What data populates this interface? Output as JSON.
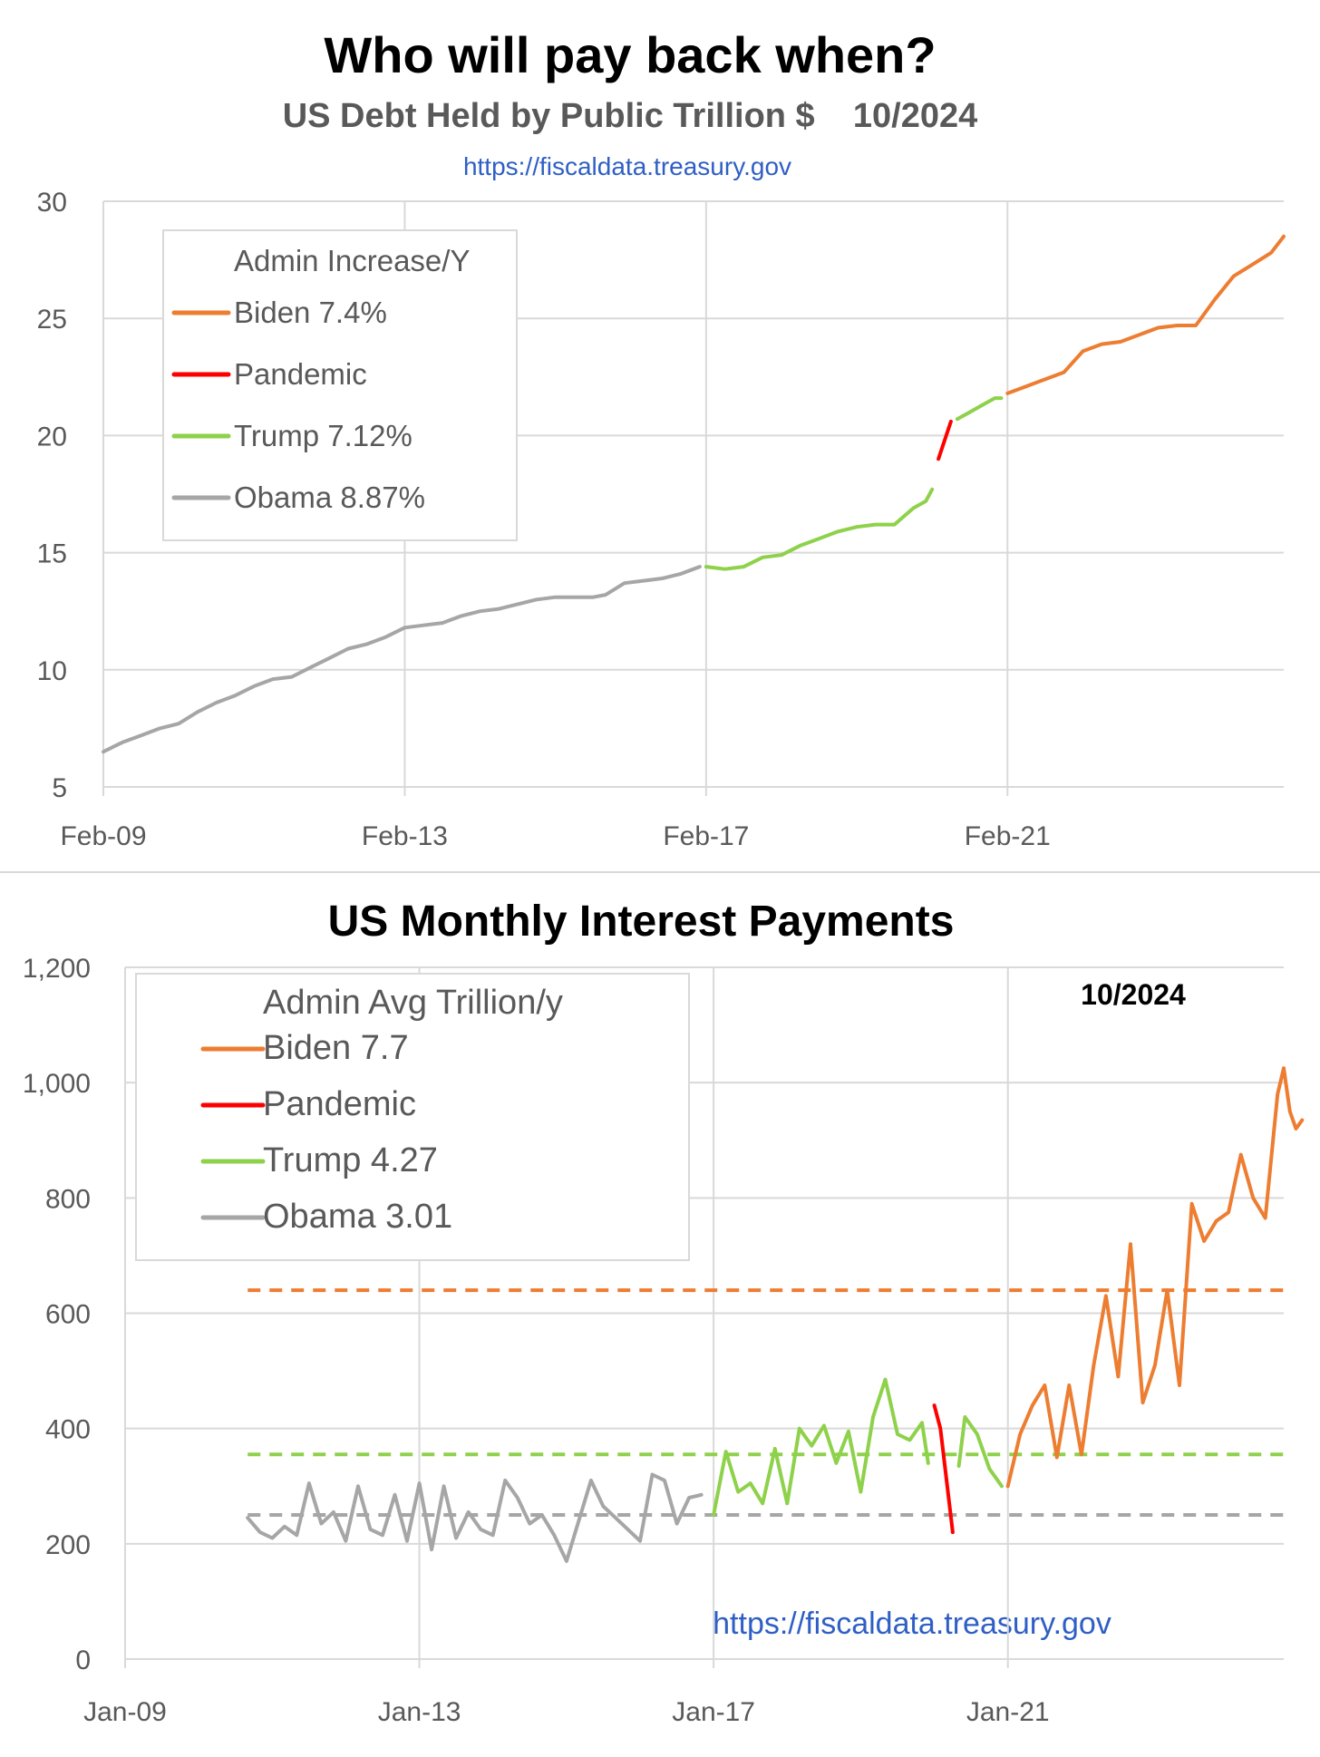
{
  "colors": {
    "biden": "#ED7D31",
    "pandemic": "#FF0000",
    "trump": "#8ED14B",
    "obama": "#A6A6A6",
    "grid": "#D9D9D9",
    "axis_text": "#595959",
    "link": "#2F5FC4",
    "title": "#000000",
    "subtitle": "#595959"
  },
  "chart_data": [
    {
      "type": "line",
      "title": "Who will pay back when?",
      "subtitle": "US Debt Held by Public Trillion $    10/2024",
      "source": "https://fiscaldata.treasury.gov",
      "xlabel": "",
      "ylabel": "",
      "x_tick_labels": [
        "Feb-09",
        "Feb-13",
        "Feb-17",
        "Feb-21"
      ],
      "x_ticks": [
        "2009-02",
        "2013-02",
        "2017-02",
        "2021-02"
      ],
      "x_range": [
        "2009-02",
        "2024-10"
      ],
      "y_tick_labels": [
        "5",
        "10",
        "15",
        "20",
        "25",
        "30"
      ],
      "y_ticks": [
        5,
        10,
        15,
        20,
        25,
        30
      ],
      "ylim": [
        5,
        30
      ],
      "grid": true,
      "legend": {
        "placement": "top-left",
        "title": "Admin Increase/Y",
        "entries": [
          {
            "label": "Biden 7.4%",
            "series": "biden"
          },
          {
            "label": "Pandemic",
            "series": "pandemic"
          },
          {
            "label": "Trump 7.12%",
            "series": "trump"
          },
          {
            "label": "Obama 8.87%",
            "series": "obama"
          }
        ]
      },
      "series": [
        {
          "name": "Obama 8.87%",
          "key": "obama",
          "x": [
            "2009-02",
            "2009-05",
            "2009-08",
            "2009-11",
            "2010-02",
            "2010-05",
            "2010-08",
            "2010-11",
            "2011-02",
            "2011-05",
            "2011-08",
            "2011-11",
            "2012-02",
            "2012-05",
            "2012-08",
            "2012-11",
            "2013-02",
            "2013-05",
            "2013-08",
            "2013-11",
            "2014-02",
            "2014-05",
            "2014-08",
            "2014-11",
            "2015-02",
            "2015-05",
            "2015-08",
            "2015-10",
            "2016-01",
            "2016-04",
            "2016-07",
            "2016-10",
            "2017-01"
          ],
          "y": [
            6.5,
            6.9,
            7.2,
            7.5,
            7.7,
            8.2,
            8.6,
            8.9,
            9.3,
            9.6,
            9.7,
            10.1,
            10.5,
            10.9,
            11.1,
            11.4,
            11.8,
            11.9,
            12.0,
            12.3,
            12.5,
            12.6,
            12.8,
            13.0,
            13.1,
            13.1,
            13.1,
            13.2,
            13.7,
            13.8,
            13.9,
            14.1,
            14.4
          ]
        },
        {
          "name": "Trump 7.12%",
          "key": "trump",
          "x": [
            "2017-02",
            "2017-05",
            "2017-08",
            "2017-11",
            "2018-02",
            "2018-05",
            "2018-08",
            "2018-11",
            "2019-02",
            "2019-05",
            "2019-08",
            "2019-11",
            "2020-01",
            "2020-02"
          ],
          "y": [
            14.4,
            14.3,
            14.4,
            14.8,
            14.9,
            15.3,
            15.6,
            15.9,
            16.1,
            16.2,
            16.2,
            16.9,
            17.2,
            17.7
          ]
        },
        {
          "name": "Pandemic",
          "key": "pandemic",
          "x": [
            "2020-03",
            "2020-05"
          ],
          "y": [
            19.0,
            20.6
          ]
        },
        {
          "name": "Trump 7.12%",
          "key": "trump",
          "x": [
            "2020-06",
            "2020-08",
            "2020-10",
            "2020-12",
            "2021-01"
          ],
          "y": [
            20.7,
            21.0,
            21.3,
            21.6,
            21.6
          ]
        },
        {
          "name": "Biden 7.4%",
          "key": "biden",
          "x": [
            "2021-02",
            "2021-05",
            "2021-08",
            "2021-11",
            "2022-02",
            "2022-05",
            "2022-08",
            "2022-11",
            "2023-02",
            "2023-05",
            "2023-08",
            "2023-11",
            "2024-02",
            "2024-05",
            "2024-08",
            "2024-10"
          ],
          "y": [
            21.8,
            22.1,
            22.4,
            22.7,
            23.6,
            23.9,
            24.0,
            24.3,
            24.6,
            24.7,
            24.7,
            25.8,
            26.8,
            27.3,
            27.8,
            28.5
          ]
        }
      ]
    },
    {
      "type": "line",
      "title": "US Monthly Interest Payments",
      "annotation": "10/2024",
      "source": "https://fiscaldata.treasury.gov",
      "xlabel": "",
      "ylabel": "",
      "x_tick_labels": [
        "Jan-09",
        "Jan-13",
        "Jan-17",
        "Jan-21"
      ],
      "x_ticks": [
        "2009-01",
        "2013-01",
        "2017-01",
        "2021-01"
      ],
      "x_range": [
        "2009-01",
        "2024-10"
      ],
      "y_tick_labels": [
        "0",
        "200",
        "400",
        "600",
        "800",
        "1,000",
        "1,200"
      ],
      "y_ticks": [
        0,
        200,
        400,
        600,
        800,
        1000,
        1200
      ],
      "ylim": [
        0,
        1200
      ],
      "grid": true,
      "legend": {
        "placement": "top-left",
        "title": "Admin Avg Trillion/y",
        "entries": [
          {
            "label": "Biden 7.7",
            "series": "biden"
          },
          {
            "label": "Pandemic",
            "series": "pandemic"
          },
          {
            "label": "Trump 4.27",
            "series": "trump"
          },
          {
            "label": "Obama 3.01",
            "series": "obama"
          }
        ]
      },
      "reference_lines": [
        {
          "key": "biden",
          "y": 640,
          "x": [
            "2010-09",
            "2024-10"
          ]
        },
        {
          "key": "trump",
          "y": 355,
          "x": [
            "2010-09",
            "2024-10"
          ]
        },
        {
          "key": "obama",
          "y": 250,
          "x": [
            "2010-09",
            "2024-10"
          ]
        }
      ],
      "series": [
        {
          "name": "Obama 3.01",
          "key": "obama",
          "x": [
            "2010-09",
            "2010-11",
            "2011-01",
            "2011-03",
            "2011-05",
            "2011-07",
            "2011-09",
            "2011-11",
            "2012-01",
            "2012-03",
            "2012-05",
            "2012-07",
            "2012-09",
            "2012-11",
            "2013-01",
            "2013-03",
            "2013-05",
            "2013-07",
            "2013-09",
            "2013-11",
            "2014-01",
            "2014-03",
            "2014-05",
            "2014-07",
            "2014-09",
            "2014-11",
            "2015-01",
            "2015-03",
            "2015-05",
            "2015-07",
            "2015-09",
            "2015-11",
            "2016-01",
            "2016-03",
            "2016-05",
            "2016-07",
            "2016-09",
            "2016-11"
          ],
          "y": [
            245,
            220,
            210,
            230,
            215,
            305,
            235,
            255,
            205,
            300,
            225,
            215,
            285,
            205,
            305,
            190,
            300,
            210,
            255,
            225,
            215,
            310,
            280,
            235,
            250,
            215,
            170,
            240,
            310,
            265,
            245,
            225,
            205,
            320,
            310,
            235,
            280,
            285
          ]
        },
        {
          "name": "Trump 4.27",
          "key": "trump",
          "x": [
            "2017-01",
            "2017-03",
            "2017-05",
            "2017-07",
            "2017-09",
            "2017-11",
            "2018-01",
            "2018-03",
            "2018-05",
            "2018-07",
            "2018-09",
            "2018-11",
            "2019-01",
            "2019-03",
            "2019-05",
            "2019-07",
            "2019-09",
            "2019-11",
            "2019-12"
          ],
          "y": [
            250,
            360,
            290,
            305,
            270,
            365,
            270,
            400,
            370,
            405,
            340,
            395,
            290,
            420,
            485,
            390,
            380,
            410,
            340
          ]
        },
        {
          "name": "Pandemic",
          "key": "pandemic",
          "x": [
            "2020-01",
            "2020-02",
            "2020-03",
            "2020-04"
          ],
          "y": [
            440,
            400,
            310,
            220
          ]
        },
        {
          "name": "Trump 4.27",
          "key": "trump",
          "x": [
            "2020-05",
            "2020-06",
            "2020-08",
            "2020-10",
            "2020-12"
          ],
          "y": [
            335,
            420,
            390,
            330,
            300
          ]
        },
        {
          "name": "Biden 7.7",
          "key": "biden",
          "x": [
            "2021-01",
            "2021-03",
            "2021-05",
            "2021-07",
            "2021-09",
            "2021-11",
            "2022-01",
            "2022-03",
            "2022-05",
            "2022-07",
            "2022-09",
            "2022-11",
            "2023-01",
            "2023-03",
            "2023-05",
            "2023-07",
            "2023-09",
            "2023-11",
            "2024-01",
            "2024-03",
            "2024-05",
            "2024-07",
            "2024-09",
            "2024-10"
          ],
          "y": [
            300,
            390,
            440,
            475,
            350,
            475,
            355,
            510,
            630,
            490,
            720,
            445,
            510,
            640,
            475,
            790,
            725,
            760,
            775,
            875,
            800,
            765,
            980,
            1025
          ]
        },
        {
          "name": "Biden 7.7",
          "key": "biden",
          "x": [
            "2024-10",
            "2024-11",
            "2024-12",
            "2025-01"
          ],
          "y": [
            1025,
            950,
            920,
            935
          ]
        }
      ]
    }
  ]
}
